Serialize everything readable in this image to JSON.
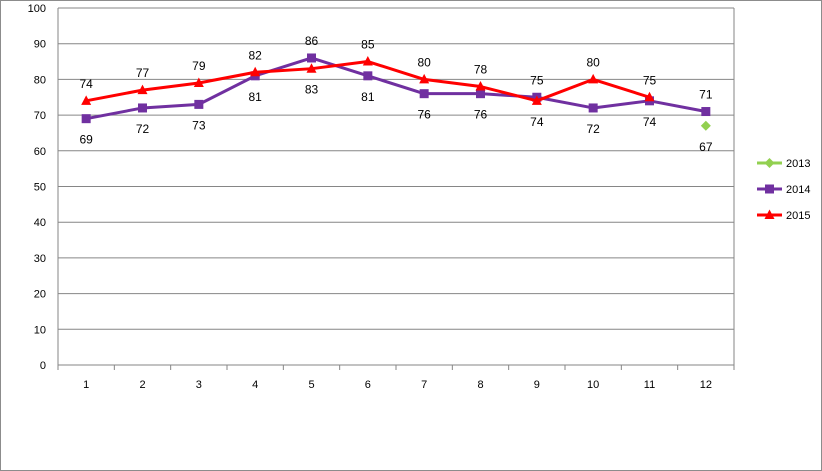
{
  "chart_data": {
    "type": "line",
    "title": "",
    "xlabel": "",
    "ylabel": "",
    "categories": [
      "1",
      "2",
      "3",
      "4",
      "5",
      "6",
      "7",
      "8",
      "9",
      "10",
      "11",
      "12"
    ],
    "ylim": [
      0,
      100
    ],
    "yticks": [
      0,
      10,
      20,
      30,
      40,
      50,
      60,
      70,
      80,
      90,
      100
    ],
    "grid": "horizontal",
    "legend": "right",
    "series": [
      {
        "name": "2013",
        "color": "#92d050",
        "marker": "diamond",
        "values": [
          null,
          null,
          null,
          null,
          null,
          null,
          null,
          null,
          null,
          null,
          null,
          67
        ],
        "labels": [
          "",
          "",
          "",
          "",
          "",
          "",
          "",
          "",
          "",
          "",
          "",
          "67"
        ]
      },
      {
        "name": "2014",
        "color": "#7030a0",
        "marker": "square",
        "values": [
          69,
          72,
          73,
          81,
          86,
          81,
          76,
          76,
          75,
          72,
          74,
          71
        ],
        "labels": [
          "69",
          "72",
          "73",
          "81",
          "86",
          "81",
          "76",
          "76",
          "75",
          "72",
          "74",
          "71"
        ]
      },
      {
        "name": "2015",
        "color": "#ff0000",
        "marker": "triangle",
        "values": [
          74,
          77,
          79,
          82,
          83,
          85,
          80,
          78,
          74,
          80,
          75,
          null
        ],
        "labels": [
          "74",
          "77",
          "79",
          "82",
          "83",
          "85",
          "80",
          "78",
          "74",
          "80",
          "75",
          ""
        ]
      }
    ]
  }
}
